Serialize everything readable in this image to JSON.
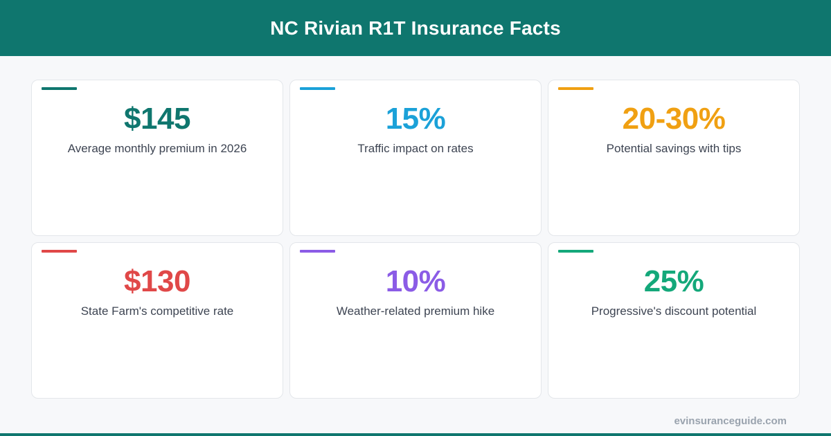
{
  "header": {
    "title": "NC Rivian R1T Insurance Facts"
  },
  "colors": {
    "header_bg": "#0f766e",
    "page_bg": "#f7f8fa"
  },
  "stats": [
    {
      "value": "$145",
      "label": "Average monthly premium in 2026",
      "color": "#0f766e"
    },
    {
      "value": "15%",
      "label": "Traffic impact on rates",
      "color": "#1ba1d8"
    },
    {
      "value": "20-30%",
      "label": "Potential savings with tips",
      "color": "#f0a012"
    },
    {
      "value": "$130",
      "label": "State Farm's competitive rate",
      "color": "#e04848"
    },
    {
      "value": "10%",
      "label": "Weather-related premium hike",
      "color": "#8b5ce6"
    },
    {
      "value": "25%",
      "label": "Progressive's discount potential",
      "color": "#14a87a"
    }
  ],
  "footer": {
    "url": "evinsuranceguide.com"
  }
}
